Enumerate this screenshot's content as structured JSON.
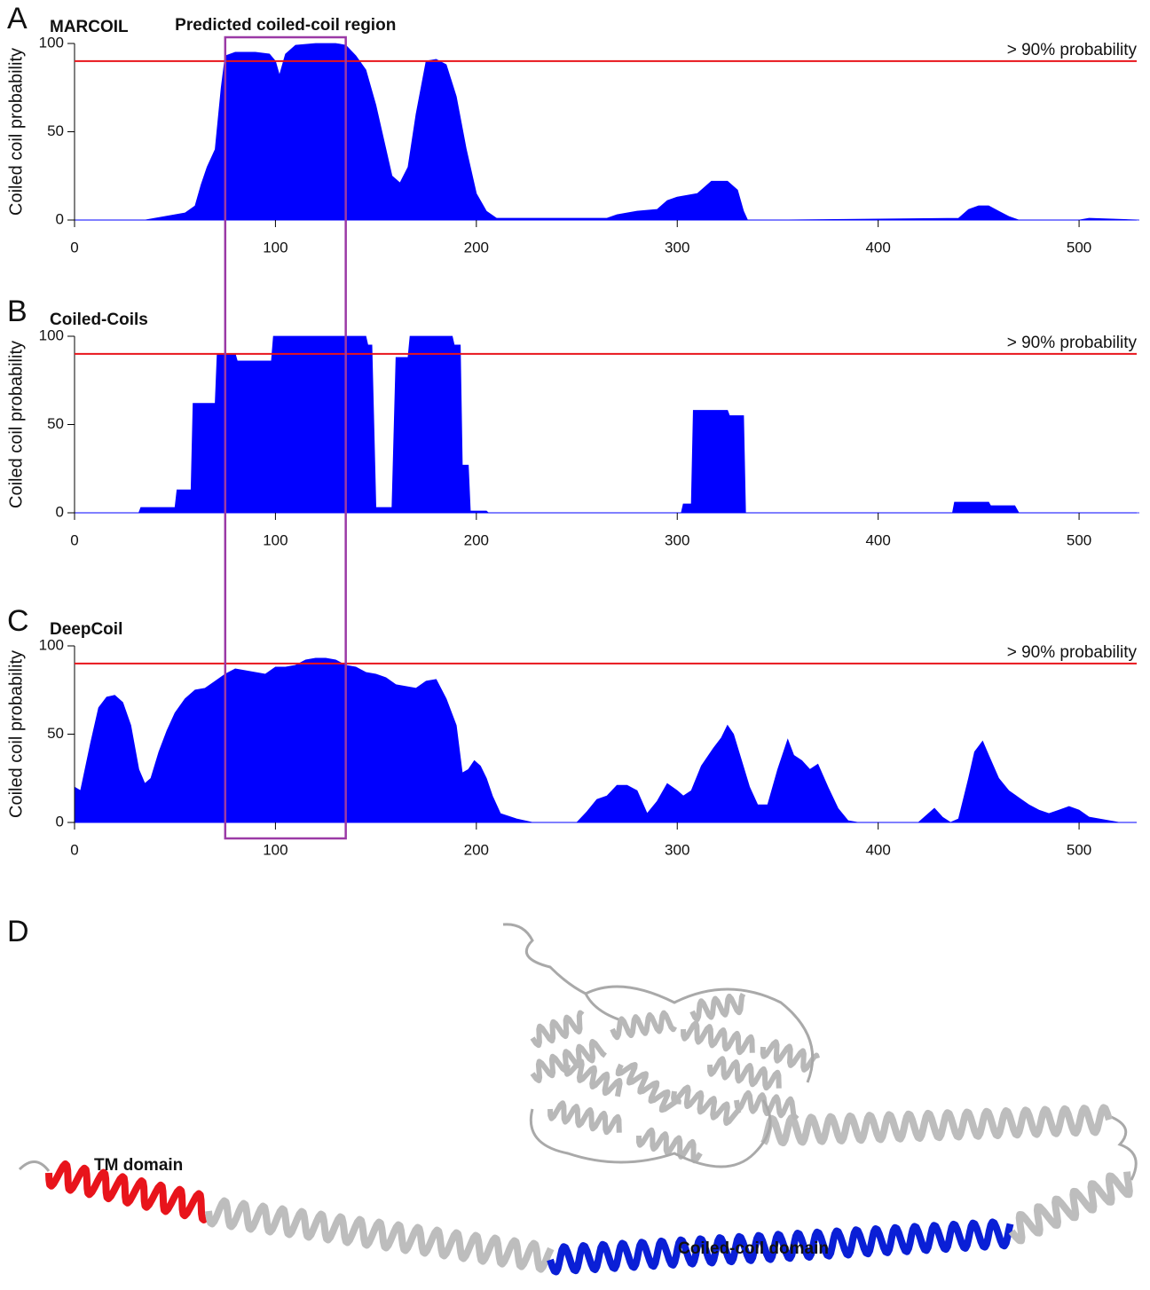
{
  "chart_data": [
    {
      "type": "area",
      "panel": "A",
      "title": "MARCOIL",
      "y_label": "Coiled coil probability",
      "color": "#0000ff",
      "x": [
        0,
        35,
        40,
        50,
        55,
        60,
        63,
        66,
        70,
        73,
        75,
        80,
        90,
        97,
        100,
        102,
        105,
        110,
        120,
        130,
        135,
        140,
        145,
        150,
        155,
        158,
        162,
        166,
        170,
        175,
        180,
        185,
        190,
        195,
        200,
        205,
        210,
        215,
        265,
        270,
        280,
        290,
        295,
        300,
        310,
        317,
        325,
        330,
        333,
        335,
        350,
        440,
        445,
        450,
        455,
        460,
        465,
        470,
        500,
        505,
        530
      ],
      "y": [
        0,
        0,
        1,
        3,
        4,
        8,
        20,
        30,
        40,
        75,
        93,
        95,
        95,
        94,
        90,
        82,
        94,
        99,
        100,
        100,
        99,
        93,
        85,
        65,
        40,
        25,
        21,
        30,
        60,
        90,
        91,
        88,
        70,
        40,
        15,
        5,
        1,
        1,
        1,
        3,
        5,
        6,
        11,
        13,
        15,
        22,
        22,
        17,
        5,
        0,
        0,
        1,
        6,
        8,
        8,
        5,
        2,
        0,
        0,
        1,
        0
      ],
      "xlim": [
        0,
        530
      ],
      "ylim": [
        0,
        100
      ],
      "xticks": [
        0,
        100,
        200,
        300,
        400,
        500
      ],
      "yticks": [
        0,
        50,
        100
      ],
      "threshold": {
        "value": 90,
        "label": "> 90% probability",
        "color": "#e8141b"
      },
      "region": {
        "label": "Predicted coiled-coil region",
        "xrange": [
          75,
          135
        ],
        "color": "#9b3aa6"
      }
    },
    {
      "type": "area",
      "panel": "B",
      "title": "Coiled-Coils",
      "y_label": "Coiled coil probability",
      "color": "#0000ff",
      "x": [
        0,
        32,
        33,
        50,
        51,
        58,
        59,
        70,
        71,
        80,
        81,
        98,
        99,
        145,
        146,
        148,
        150,
        158,
        160,
        166,
        167,
        188,
        189,
        192,
        193,
        196,
        197,
        205,
        206,
        302,
        303,
        307,
        308,
        325,
        326,
        333,
        334,
        437,
        438,
        455,
        456,
        468,
        470,
        530
      ],
      "y": [
        0,
        0,
        3,
        3,
        13,
        13,
        62,
        62,
        90,
        90,
        86,
        86,
        100,
        100,
        95,
        95,
        3,
        3,
        88,
        88,
        100,
        100,
        95,
        95,
        27,
        27,
        1,
        1,
        0,
        0,
        5,
        5,
        58,
        58,
        55,
        55,
        0,
        0,
        6,
        6,
        4,
        4,
        0,
        0
      ],
      "xlim": [
        0,
        530
      ],
      "ylim": [
        0,
        100
      ],
      "xticks": [
        0,
        100,
        200,
        300,
        400,
        500
      ],
      "yticks": [
        0,
        50,
        100
      ],
      "threshold": {
        "value": 90,
        "label": "> 90% probability",
        "color": "#e8141b"
      }
    },
    {
      "type": "area",
      "panel": "C",
      "title": "DeepCoil",
      "y_label": "Coiled coil probability",
      "color": "#0000ff",
      "x": [
        0,
        3,
        8,
        12,
        16,
        20,
        24,
        28,
        32,
        35,
        38,
        42,
        46,
        50,
        55,
        60,
        65,
        70,
        75,
        80,
        85,
        90,
        95,
        100,
        105,
        110,
        115,
        120,
        125,
        130,
        135,
        140,
        145,
        150,
        155,
        160,
        165,
        170,
        175,
        180,
        185,
        190,
        193,
        196,
        199,
        202,
        205,
        208,
        212,
        220,
        228,
        250,
        255,
        260,
        265,
        270,
        275,
        280,
        285,
        290,
        295,
        300,
        303,
        307,
        312,
        318,
        322,
        325,
        328,
        332,
        336,
        340,
        345,
        350,
        355,
        358,
        362,
        366,
        370,
        375,
        380,
        385,
        390,
        420,
        425,
        428,
        432,
        436,
        440,
        445,
        448,
        452,
        455,
        460,
        465,
        470,
        475,
        480,
        485,
        490,
        495,
        500,
        505,
        510,
        515,
        520
      ],
      "y": [
        20,
        18,
        45,
        65,
        71,
        72,
        68,
        55,
        30,
        22,
        25,
        40,
        52,
        62,
        70,
        75,
        76,
        80,
        84,
        87,
        86,
        85,
        84,
        88,
        88,
        89,
        92,
        93,
        93,
        92,
        89,
        88,
        85,
        84,
        82,
        78,
        77,
        76,
        80,
        81,
        70,
        55,
        28,
        30,
        35,
        32,
        25,
        15,
        5,
        2,
        0,
        0,
        6,
        13,
        15,
        21,
        21,
        18,
        5,
        12,
        22,
        18,
        15,
        18,
        32,
        42,
        48,
        55,
        50,
        35,
        20,
        10,
        10,
        30,
        47,
        38,
        35,
        30,
        33,
        20,
        8,
        1,
        0,
        0,
        5,
        8,
        3,
        0,
        2,
        25,
        40,
        46,
        38,
        25,
        18,
        14,
        10,
        7,
        5,
        7,
        9,
        7,
        3,
        2,
        1,
        0
      ],
      "xlim": [
        0,
        530
      ],
      "ylim": [
        0,
        100
      ],
      "xticks": [
        0,
        100,
        200,
        300,
        400,
        500
      ],
      "yticks": [
        0,
        50,
        100
      ],
      "threshold": {
        "value": 90,
        "label": "> 90% probability",
        "color": "#e8141b"
      }
    }
  ],
  "structure": {
    "panel": "D",
    "tm_label": "TM domain",
    "coil_label": "Coiled-coil domain"
  }
}
